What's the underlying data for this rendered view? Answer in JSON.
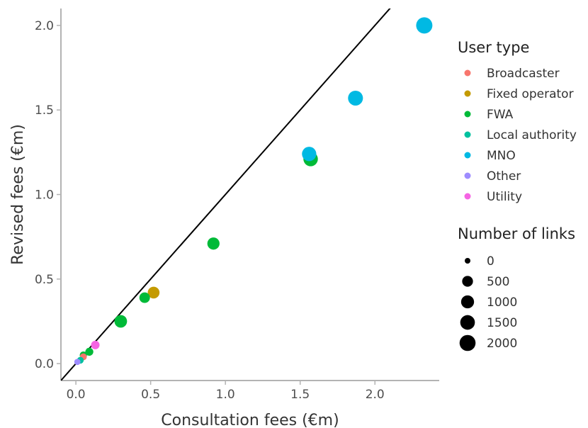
{
  "chart_data": {
    "type": "scatter",
    "title": "",
    "xlabel": "Consultation fees (€m)",
    "ylabel": "Revised fees (€m)",
    "xlim": [
      -0.1,
      2.43
    ],
    "ylim": [
      -0.1,
      2.1
    ],
    "xticks": [
      "0.0",
      "0.5",
      "1.0",
      "1.5",
      "2.0"
    ],
    "yticks": [
      "0.0",
      "0.5",
      "1.0",
      "1.5",
      "2.0"
    ],
    "xtick_values": [
      0,
      0.5,
      1,
      1.5,
      2
    ],
    "ytick_values": [
      0,
      0.5,
      1,
      1.5,
      2
    ],
    "grid": false,
    "reference_line": {
      "kind": "identity",
      "slope": 1,
      "intercept": 0
    },
    "color_legend": {
      "title": "User type",
      "placement": "right",
      "entries": [
        {
          "name": "Broadcaster",
          "color": "#F8766D"
        },
        {
          "name": "Fixed operator",
          "color": "#C49A00"
        },
        {
          "name": "FWA",
          "color": "#00BA38"
        },
        {
          "name": "Local authority",
          "color": "#00C19F"
        },
        {
          "name": "MNO",
          "color": "#00B9E3"
        },
        {
          "name": "Other",
          "color": "#9E8CFF"
        },
        {
          "name": "Utility",
          "color": "#F564E3"
        }
      ]
    },
    "size_legend": {
      "title": "Number of links",
      "placement": "right",
      "entries": [
        "0",
        "500",
        "1000",
        "1500",
        "2000"
      ],
      "values": [
        0,
        500,
        1000,
        1500,
        2000
      ]
    },
    "series": [
      {
        "name": "MNO",
        "points": [
          {
            "x": 2.33,
            "y": 2.0,
            "links": 2100
          },
          {
            "x": 1.87,
            "y": 1.57,
            "links": 1600
          },
          {
            "x": 1.56,
            "y": 1.24,
            "links": 1400
          }
        ]
      },
      {
        "name": "FWA",
        "points": [
          {
            "x": 1.57,
            "y": 1.21,
            "links": 1450
          },
          {
            "x": 0.92,
            "y": 0.71,
            "links": 800
          },
          {
            "x": 0.46,
            "y": 0.39,
            "links": 450
          },
          {
            "x": 0.3,
            "y": 0.25,
            "links": 900
          },
          {
            "x": 0.09,
            "y": 0.07,
            "links": 100
          },
          {
            "x": 0.05,
            "y": 0.05,
            "links": 50
          }
        ]
      },
      {
        "name": "Fixed operator",
        "points": [
          {
            "x": 0.52,
            "y": 0.42,
            "links": 700
          }
        ]
      },
      {
        "name": "Utility",
        "points": [
          {
            "x": 0.13,
            "y": 0.11,
            "links": 150
          }
        ]
      },
      {
        "name": "Broadcaster",
        "points": [
          {
            "x": 0.05,
            "y": 0.04,
            "links": 30
          }
        ]
      },
      {
        "name": "Local authority",
        "points": [
          {
            "x": 0.03,
            "y": 0.02,
            "links": 20
          }
        ]
      },
      {
        "name": "Other",
        "points": [
          {
            "x": 0.01,
            "y": 0.01,
            "links": 5
          }
        ]
      }
    ]
  }
}
